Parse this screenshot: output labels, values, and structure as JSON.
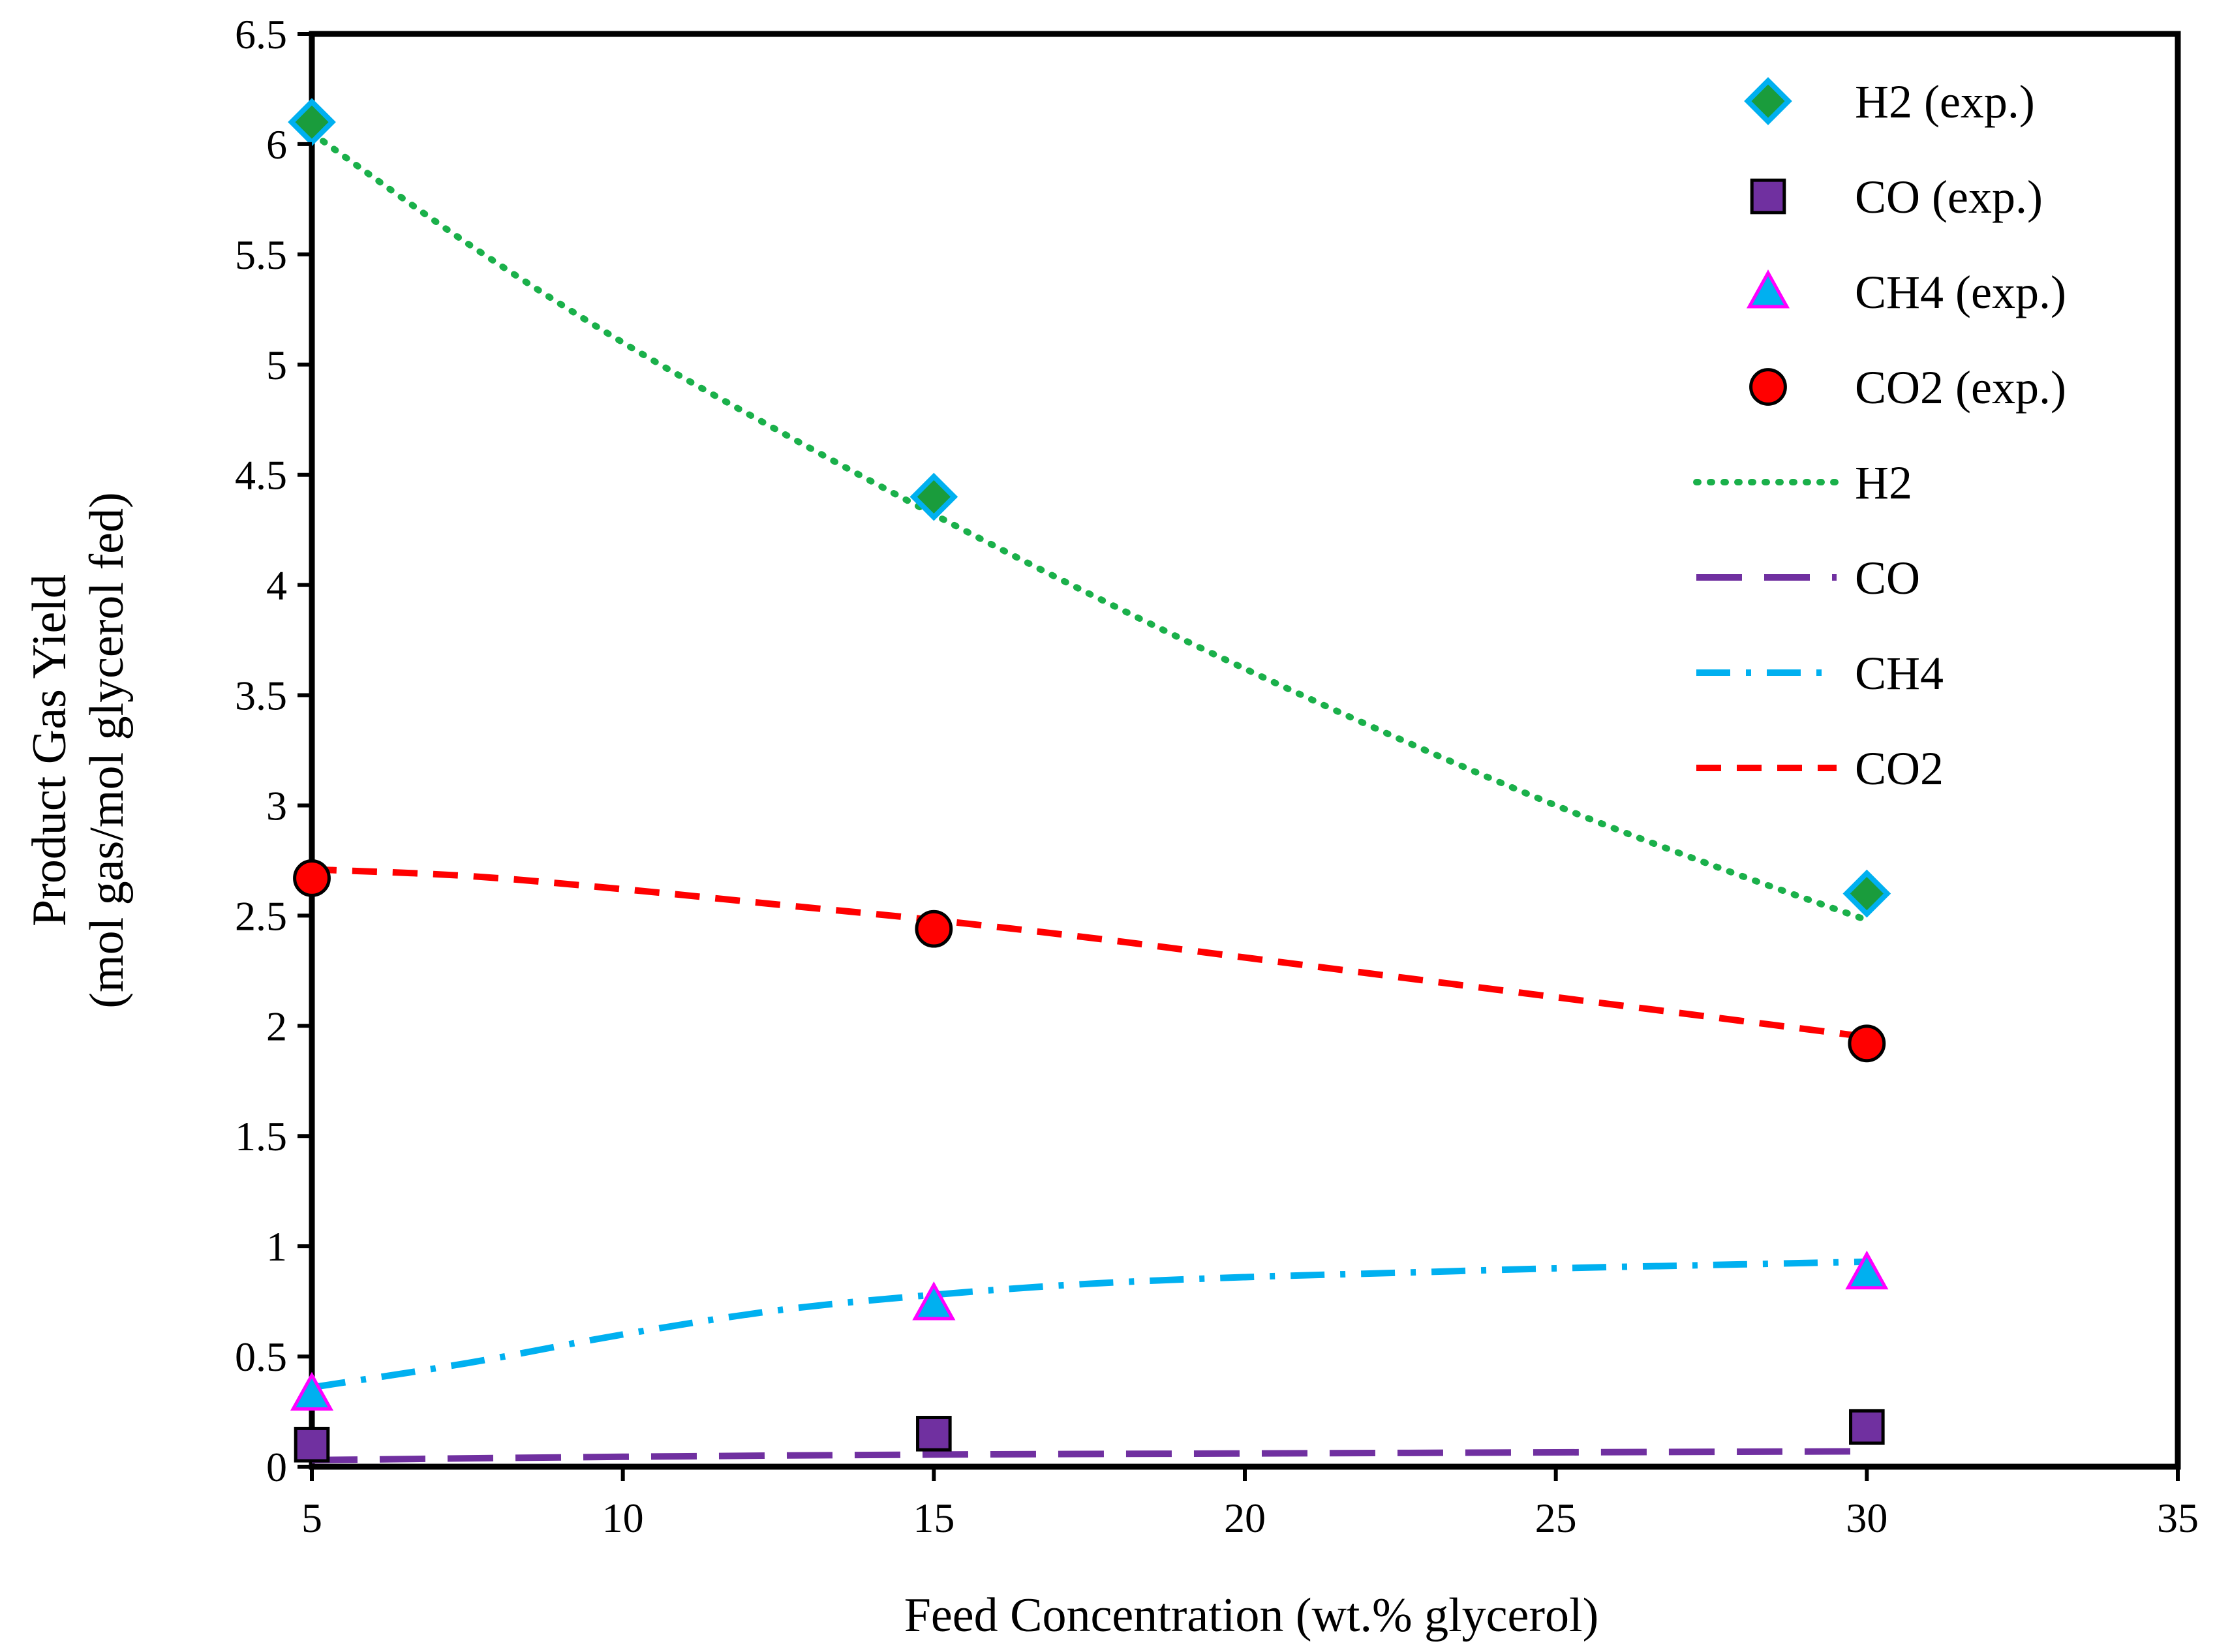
{
  "chart_data": {
    "type": "scatter",
    "title": "",
    "xlabel": "Feed Concentration (wt.% glycerol)",
    "ylabel_line1": "Product Gas Yield",
    "ylabel_line2": "(mol gas/mol glycerol fed)",
    "xlim": [
      5,
      35
    ],
    "ylim": [
      0,
      6.5
    ],
    "x_ticks": [
      "5",
      "10",
      "15",
      "20",
      "25",
      "30",
      "35"
    ],
    "y_ticks": [
      "0",
      "0.5",
      "1",
      "1.5",
      "2",
      "2.5",
      "3",
      "3.5",
      "4",
      "4.5",
      "5",
      "5.5",
      "6",
      "6.5"
    ],
    "legend_position": "top-right",
    "series": [
      {
        "name": "H2 (exp.)",
        "kind": "markers",
        "marker": "diamond",
        "fill": "#1a9c3c",
        "stroke": "#00b0f0",
        "x": [
          5,
          15,
          30
        ],
        "y": [
          6.1,
          4.4,
          2.6
        ]
      },
      {
        "name": "CO (exp.)",
        "kind": "markers",
        "marker": "square",
        "fill": "#7030a0",
        "stroke": "#000000",
        "x": [
          5,
          15,
          30
        ],
        "y": [
          0.1,
          0.15,
          0.18
        ]
      },
      {
        "name": "CH4 (exp.)",
        "kind": "markers",
        "marker": "triangle",
        "fill": "#00b0f0",
        "stroke": "#ff00ff",
        "x": [
          5,
          15,
          30
        ],
        "y": [
          0.33,
          0.74,
          0.88
        ]
      },
      {
        "name": "CO2 (exp.)",
        "kind": "markers",
        "marker": "circle",
        "fill": "#ff0000",
        "stroke": "#000000",
        "x": [
          5,
          15,
          30
        ],
        "y": [
          2.67,
          2.44,
          1.92
        ]
      },
      {
        "name": "H2",
        "kind": "line",
        "dash": "dotted",
        "stroke": "#1ab04a",
        "x": [
          5,
          7.5,
          10,
          12.5,
          15,
          17.5,
          20,
          22.5,
          25,
          27.5,
          30
        ],
        "y": [
          6.05,
          5.55,
          5.1,
          4.7,
          4.32,
          3.96,
          3.62,
          3.3,
          3.0,
          2.73,
          2.48
        ]
      },
      {
        "name": "CO",
        "kind": "line",
        "dash": "long-dash",
        "stroke": "#7030a0",
        "x": [
          5,
          10,
          15,
          20,
          25,
          30
        ],
        "y": [
          0.03,
          0.045,
          0.055,
          0.06,
          0.065,
          0.07
        ]
      },
      {
        "name": "CH4",
        "kind": "line",
        "dash": "dash-dot",
        "stroke": "#00b0f0",
        "x": [
          5,
          7.5,
          10,
          12.5,
          15,
          17.5,
          20,
          22.5,
          25,
          27.5,
          30
        ],
        "y": [
          0.36,
          0.47,
          0.6,
          0.71,
          0.78,
          0.83,
          0.86,
          0.88,
          0.9,
          0.915,
          0.93
        ]
      },
      {
        "name": "CO2",
        "kind": "line",
        "dash": "dashed",
        "stroke": "#ff0000",
        "x": [
          5,
          7.5,
          10,
          12.5,
          15,
          17.5,
          20,
          22.5,
          25,
          27.5,
          30
        ],
        "y": [
          2.71,
          2.68,
          2.62,
          2.55,
          2.48,
          2.4,
          2.31,
          2.22,
          2.13,
          2.04,
          1.95
        ]
      }
    ]
  }
}
